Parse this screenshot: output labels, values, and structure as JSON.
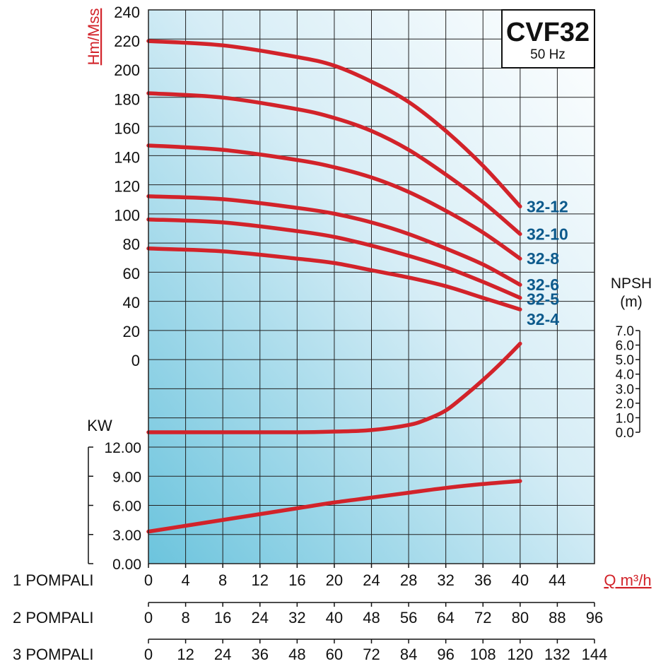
{
  "chart_data": {
    "type": "line",
    "model": "CVF32",
    "frequency": "50 Hz",
    "head_axis": {
      "label": "Hm/Mss",
      "ticks": [
        240,
        220,
        200,
        180,
        160,
        140,
        120,
        100,
        80,
        60,
        40,
        20,
        0
      ],
      "range": [
        0,
        240
      ]
    },
    "npsh_axis": {
      "label_line1": "NPSH",
      "label_line2": "(m)",
      "ticks": [
        "7.0",
        "6.0",
        "5.0",
        "4.0",
        "3.0",
        "2.0",
        "1.0",
        "0.0"
      ],
      "range": [
        0,
        7
      ]
    },
    "kw_axis": {
      "label": "KW",
      "ticks": [
        "12.00",
        "9.00",
        "6.00",
        "3.00",
        "0.00"
      ],
      "range": [
        0,
        12
      ]
    },
    "flow_axes": [
      {
        "label": "1 POMPALI",
        "ticks": [
          "0",
          "4",
          "8",
          "12",
          "16",
          "20",
          "24",
          "28",
          "32",
          "36",
          "40",
          "44"
        ]
      },
      {
        "label": "2 POMPALI",
        "ticks": [
          "0",
          "8",
          "16",
          "24",
          "32",
          "40",
          "48",
          "56",
          "64",
          "72",
          "80",
          "88",
          "96"
        ]
      },
      {
        "label": "3 POMPALI",
        "ticks": [
          "0",
          "12",
          "24",
          "36",
          "48",
          "60",
          "72",
          "84",
          "96",
          "108",
          "120",
          "132",
          "144"
        ]
      }
    ],
    "flow_unit": "Q m³/h",
    "x_range": [
      0,
      48
    ],
    "head_curves": [
      {
        "name": "32-12",
        "points": [
          [
            0,
            220
          ],
          [
            8,
            217
          ],
          [
            16,
            209
          ],
          [
            20,
            203
          ],
          [
            24,
            192
          ],
          [
            28,
            178
          ],
          [
            32,
            158
          ],
          [
            36,
            134
          ],
          [
            40,
            106
          ]
        ]
      },
      {
        "name": "32-10",
        "points": [
          [
            0,
            184
          ],
          [
            8,
            181
          ],
          [
            16,
            173
          ],
          [
            20,
            167
          ],
          [
            24,
            158
          ],
          [
            28,
            145
          ],
          [
            32,
            128
          ],
          [
            36,
            109
          ],
          [
            40,
            87
          ]
        ]
      },
      {
        "name": "32-8",
        "points": [
          [
            0,
            148
          ],
          [
            8,
            145
          ],
          [
            16,
            138
          ],
          [
            20,
            133
          ],
          [
            24,
            126
          ],
          [
            28,
            116
          ],
          [
            32,
            103
          ],
          [
            36,
            88
          ],
          [
            40,
            70
          ]
        ]
      },
      {
        "name": "32-6",
        "points": [
          [
            0,
            113
          ],
          [
            8,
            111
          ],
          [
            16,
            105
          ],
          [
            20,
            101
          ],
          [
            24,
            95
          ],
          [
            28,
            87
          ],
          [
            32,
            77
          ],
          [
            36,
            66
          ],
          [
            40,
            52
          ]
        ]
      },
      {
        "name": "32-5",
        "points": [
          [
            0,
            97
          ],
          [
            8,
            95
          ],
          [
            16,
            89
          ],
          [
            20,
            85
          ],
          [
            24,
            79
          ],
          [
            28,
            72
          ],
          [
            32,
            64
          ],
          [
            36,
            54
          ],
          [
            40,
            43
          ]
        ]
      },
      {
        "name": "32-4",
        "points": [
          [
            0,
            77
          ],
          [
            8,
            75
          ],
          [
            16,
            70
          ],
          [
            20,
            67
          ],
          [
            24,
            62
          ],
          [
            28,
            57
          ],
          [
            32,
            51
          ],
          [
            36,
            43
          ],
          [
            40,
            35
          ]
        ]
      }
    ],
    "npsh_curve": {
      "points": [
        [
          0,
          0
        ],
        [
          8,
          0
        ],
        [
          16,
          0
        ],
        [
          20,
          0.05
        ],
        [
          24,
          0.15
        ],
        [
          28,
          0.5
        ],
        [
          30,
          0.9
        ],
        [
          32,
          1.5
        ],
        [
          34,
          2.5
        ],
        [
          36,
          3.6
        ],
        [
          38,
          4.8
        ],
        [
          40,
          6.1
        ]
      ]
    },
    "kw_curve": {
      "points": [
        [
          0,
          3.3
        ],
        [
          4,
          3.9
        ],
        [
          8,
          4.5
        ],
        [
          12,
          5.1
        ],
        [
          16,
          5.7
        ],
        [
          20,
          6.3
        ],
        [
          24,
          6.8
        ],
        [
          28,
          7.3
        ],
        [
          32,
          7.8
        ],
        [
          36,
          8.2
        ],
        [
          40,
          8.5
        ]
      ]
    },
    "grid": true
  }
}
